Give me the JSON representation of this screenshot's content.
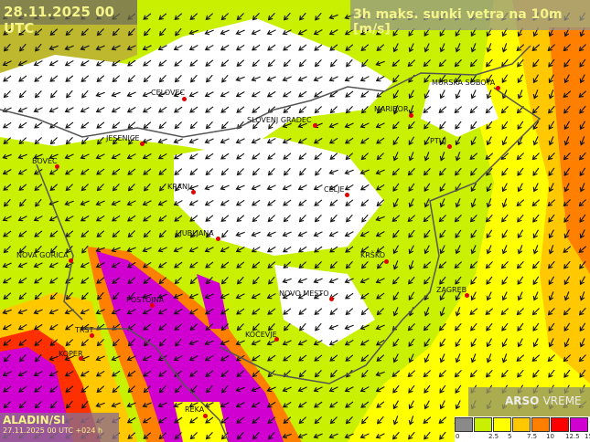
{
  "header": {
    "valid_time": "28.11.2025 00 UTC",
    "title": "3h maks. sunki vetra na 10m [m/s]"
  },
  "model": {
    "name": "ALADIN/SI",
    "run": "27.11.2025 00 UTC +024 h"
  },
  "logo": {
    "brand": "ARSO",
    "sub": "VREME"
  },
  "legend": {
    "colors": [
      "#8a8a8a",
      "#c8f000",
      "#ffff00",
      "#ffc800",
      "#ff8000",
      "#ff0000",
      "#d000d0"
    ],
    "ticks": [
      "0",
      "2.5",
      "5",
      "7.5",
      "10",
      "12.5",
      "15"
    ]
  },
  "cities": [
    {
      "name": "CELOVEC"
    },
    {
      "name": "SLOVENJ GRADEC"
    },
    {
      "name": "MURSKA SOBOTA"
    },
    {
      "name": "MARIBOR"
    },
    {
      "name": "JESENICE"
    },
    {
      "name": "PTUJ"
    },
    {
      "name": "BOVEC"
    },
    {
      "name": "KRANJ"
    },
    {
      "name": "CELJE"
    },
    {
      "name": "LJUBLJANA"
    },
    {
      "name": "NOVA GORICA"
    },
    {
      "name": "KRŠKO"
    },
    {
      "name": "ZAGREB"
    },
    {
      "name": "POSTOJNA"
    },
    {
      "name": "NOVO MESTO"
    },
    {
      "name": "KOČEVJE"
    },
    {
      "name": "TRST"
    },
    {
      "name": "KOPER"
    },
    {
      "name": "REKA"
    }
  ]
}
